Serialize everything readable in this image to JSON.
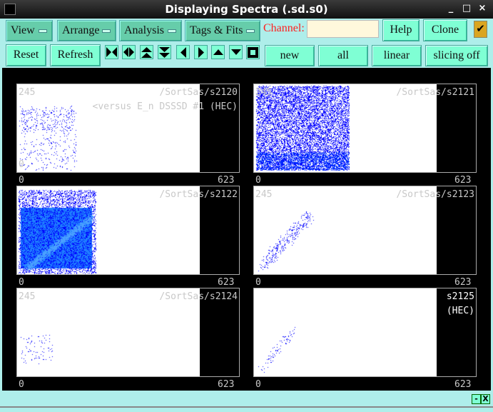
{
  "window": {
    "title": "Displaying Spectra (.sd.s0)",
    "controls": [
      "_",
      "□",
      "×"
    ]
  },
  "menus": [
    {
      "label": "View"
    },
    {
      "label": "Arrange"
    },
    {
      "label": "Analysis"
    },
    {
      "label": "Tags & Fits"
    }
  ],
  "channel": {
    "label": "Channel:",
    "value": ""
  },
  "buttons": {
    "help": "Help",
    "clone": "Clone",
    "reset": "Reset",
    "refresh": "Refresh",
    "new": "new",
    "all": "all",
    "linear": "linear",
    "slicing": "slicing off"
  },
  "checkbox": {
    "checked": true,
    "mark": "✔"
  },
  "icon_buttons": [
    "expand-horizontal",
    "shrink-horizontal",
    "expand-vertical",
    "shrink-vertical",
    "scroll-left",
    "scroll-right",
    "scroll-up",
    "scroll-down",
    "full-view"
  ],
  "spectra": [
    {
      "ymax": "245",
      "name": "/SortSas/s2120",
      "subtitle": "<versus E_n DSSSD #1 (HEC)",
      "ymin": "0",
      "xmin": "0",
      "xmax": "623"
    },
    {
      "ymax": "245",
      "name": "/SortSas/s2121",
      "subtitle": "",
      "ymin": "",
      "xmin": "0",
      "xmax": "623"
    },
    {
      "ymax": "",
      "name": "/SortSas/s2122",
      "subtitle": "",
      "ymin": "",
      "xmin": "0",
      "xmax": "623"
    },
    {
      "ymax": "245",
      "name": "/SortSas/s2123",
      "subtitle": "",
      "ymin": "",
      "xmin": "0",
      "xmax": "623"
    },
    {
      "ymax": "245",
      "name": "/SortSas/s2124",
      "subtitle": "",
      "ymin": "",
      "xmin": "0",
      "xmax": "623"
    },
    {
      "ymax": "",
      "name": "s2125",
      "subtitle": "(HEC)",
      "ymin": "",
      "xmin": "0",
      "xmax": "623"
    }
  ],
  "bottom": {
    "minimize": "-",
    "close": "X"
  },
  "colors": {
    "toolbar": "#aeeeea",
    "menu": "#66cdaa",
    "button": "#7fffd4",
    "channel_label": "#ff2020",
    "points": "#0000ff",
    "checkbox": "#daa520"
  }
}
